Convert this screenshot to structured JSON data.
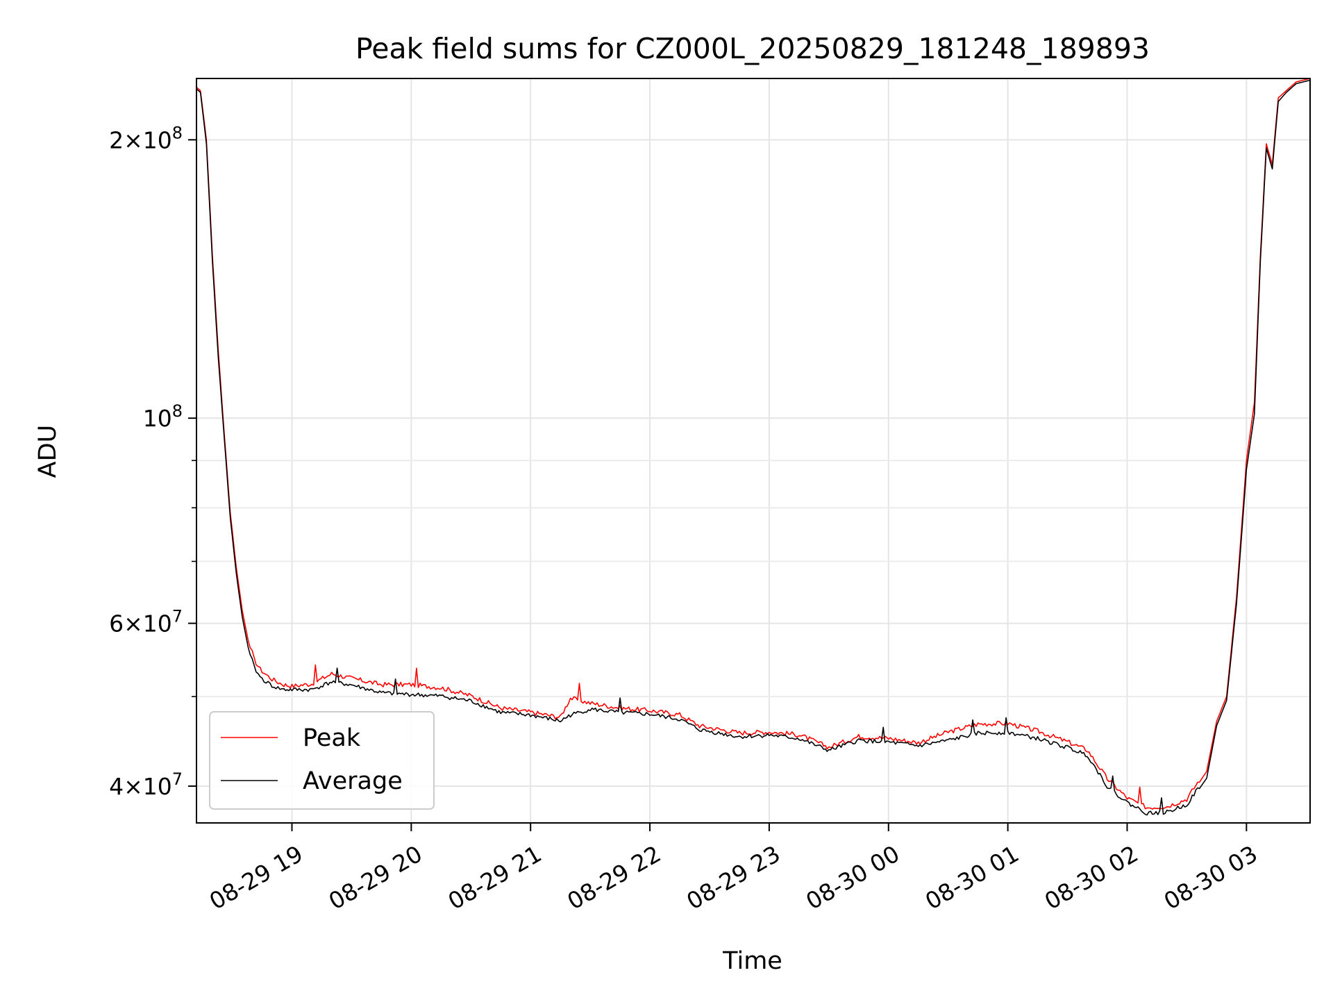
{
  "chart_data": {
    "type": "line",
    "title": "Peak field sums for CZ000L_20250829_181248_189893",
    "xlabel": "Time",
    "ylabel": "ADU",
    "yscale": "log",
    "grid": true,
    "legend_position": "lower-left",
    "xlim": [
      "2025-08-29 18:12",
      "2025-08-30 03:32"
    ],
    "ylim": [
      36500000,
      233000000
    ],
    "x_ticks": [
      {
        "value": "2025-08-29 19:00",
        "label": "08-29 19"
      },
      {
        "value": "2025-08-29 20:00",
        "label": "08-29 20"
      },
      {
        "value": "2025-08-29 21:00",
        "label": "08-29 21"
      },
      {
        "value": "2025-08-29 22:00",
        "label": "08-29 22"
      },
      {
        "value": "2025-08-29 23:00",
        "label": "08-29 23"
      },
      {
        "value": "2025-08-30 00:00",
        "label": "08-30 00"
      },
      {
        "value": "2025-08-30 01:00",
        "label": "08-30 01"
      },
      {
        "value": "2025-08-30 02:00",
        "label": "08-30 02"
      },
      {
        "value": "2025-08-30 03:00",
        "label": "08-30 03"
      }
    ],
    "y_ticks": [
      {
        "value": 40000000,
        "mantissa": "4",
        "exponent": "7"
      },
      {
        "value": 60000000,
        "mantissa": "6",
        "exponent": "7"
      },
      {
        "value": 100000000,
        "mantissa": "",
        "exponent": "8"
      },
      {
        "value": 200000000,
        "mantissa": "2",
        "exponent": "8"
      }
    ],
    "y_minor_ticks": [
      50000000,
      70000000,
      80000000,
      90000000
    ],
    "series": [
      {
        "name": "Peak",
        "color": "#ff0000",
        "x": [
          "2025-08-29 18:12",
          "2025-08-29 18:14",
          "2025-08-29 18:17",
          "2025-08-29 18:20",
          "2025-08-29 18:23",
          "2025-08-29 18:26",
          "2025-08-29 18:29",
          "2025-08-29 18:32",
          "2025-08-29 18:35",
          "2025-08-29 18:38",
          "2025-08-29 18:41",
          "2025-08-29 18:44",
          "2025-08-29 18:47",
          "2025-08-29 18:50",
          "2025-08-29 18:53",
          "2025-08-29 18:56",
          "2025-08-29 19:00",
          "2025-08-29 19:10",
          "2025-08-29 19:20",
          "2025-08-29 19:30",
          "2025-08-29 19:45",
          "2025-08-29 20:00",
          "2025-08-29 20:15",
          "2025-08-29 20:30",
          "2025-08-29 20:45",
          "2025-08-29 21:00",
          "2025-08-29 21:15",
          "2025-08-29 21:20",
          "2025-08-29 21:30",
          "2025-08-29 21:45",
          "2025-08-29 22:00",
          "2025-08-29 22:15",
          "2025-08-29 22:25",
          "2025-08-29 22:45",
          "2025-08-29 23:00",
          "2025-08-29 23:15",
          "2025-08-29 23:30",
          "2025-08-29 23:45",
          "2025-08-30 00:00",
          "2025-08-30 00:15",
          "2025-08-30 00:30",
          "2025-08-30 00:45",
          "2025-08-30 01:00",
          "2025-08-30 01:15",
          "2025-08-30 01:30",
          "2025-08-30 01:40",
          "2025-08-30 01:50",
          "2025-08-30 02:00",
          "2025-08-30 02:10",
          "2025-08-30 02:20",
          "2025-08-30 02:30",
          "2025-08-30 02:40",
          "2025-08-30 02:45",
          "2025-08-30 02:50",
          "2025-08-30 02:55",
          "2025-08-30 03:00",
          "2025-08-30 03:04",
          "2025-08-30 03:07",
          "2025-08-30 03:10",
          "2025-08-30 03:13",
          "2025-08-30 03:16",
          "2025-08-30 03:20",
          "2025-08-30 03:25",
          "2025-08-30 03:32"
        ],
        "y": [
          228000000,
          226000000,
          200000000,
          150000000,
          118000000,
          96000000,
          79000000,
          69000000,
          62000000,
          57500000,
          54500000,
          53200000,
          52500000,
          51900000,
          51500000,
          51200000,
          51000000,
          51300000,
          52600000,
          52000000,
          51200000,
          51200000,
          50800000,
          49800000,
          48300000,
          47800000,
          47200000,
          49500000,
          48900000,
          48300000,
          48000000,
          47500000,
          46200000,
          45400000,
          45500000,
          45200000,
          43800000,
          45000000,
          44800000,
          44300000,
          45500000,
          46400000,
          46500000,
          45600000,
          44400000,
          43500000,
          40500000,
          38600000,
          37700000,
          37800000,
          38500000,
          41500000,
          47000000,
          50000000,
          64000000,
          90000000,
          104000000,
          150000000,
          198000000,
          188000000,
          222000000,
          226000000,
          231000000,
          233000000
        ]
      },
      {
        "name": "Average",
        "color": "#000000",
        "x": [
          "2025-08-29 18:12",
          "2025-08-29 18:14",
          "2025-08-29 18:17",
          "2025-08-29 18:20",
          "2025-08-29 18:23",
          "2025-08-29 18:26",
          "2025-08-29 18:29",
          "2025-08-29 18:32",
          "2025-08-29 18:35",
          "2025-08-29 18:38",
          "2025-08-29 18:41",
          "2025-08-29 18:44",
          "2025-08-29 18:47",
          "2025-08-29 18:50",
          "2025-08-29 18:53",
          "2025-08-29 18:56",
          "2025-08-29 19:00",
          "2025-08-29 19:10",
          "2025-08-29 19:20",
          "2025-08-29 19:30",
          "2025-08-29 19:45",
          "2025-08-29 20:00",
          "2025-08-29 20:15",
          "2025-08-29 20:30",
          "2025-08-29 20:45",
          "2025-08-29 21:00",
          "2025-08-29 21:15",
          "2025-08-29 21:20",
          "2025-08-29 21:30",
          "2025-08-29 21:45",
          "2025-08-29 22:00",
          "2025-08-29 22:15",
          "2025-08-29 22:25",
          "2025-08-29 22:45",
          "2025-08-29 23:00",
          "2025-08-29 23:15",
          "2025-08-29 23:30",
          "2025-08-29 23:45",
          "2025-08-30 00:00",
          "2025-08-30 00:15",
          "2025-08-30 00:30",
          "2025-08-30 00:45",
          "2025-08-30 01:00",
          "2025-08-30 01:15",
          "2025-08-30 01:30",
          "2025-08-30 01:40",
          "2025-08-30 01:50",
          "2025-08-30 02:00",
          "2025-08-30 02:10",
          "2025-08-30 02:20",
          "2025-08-30 02:30",
          "2025-08-30 02:40",
          "2025-08-30 02:45",
          "2025-08-30 02:50",
          "2025-08-30 02:55",
          "2025-08-30 03:00",
          "2025-08-30 03:04",
          "2025-08-30 03:07",
          "2025-08-30 03:10",
          "2025-08-30 03:13",
          "2025-08-30 03:16",
          "2025-08-30 03:20",
          "2025-08-30 03:25",
          "2025-08-30 03:32"
        ],
        "y": [
          227000000,
          225000000,
          198000000,
          148000000,
          116000000,
          95000000,
          78000000,
          68000000,
          61000000,
          56500000,
          53500000,
          52200000,
          51600000,
          51100000,
          50800000,
          50600000,
          50600000,
          50600000,
          51600000,
          51200000,
          50200000,
          50000000,
          49800000,
          49200000,
          47800000,
          47500000,
          46800000,
          47500000,
          48200000,
          47800000,
          47600000,
          47000000,
          45800000,
          45000000,
          45200000,
          44800000,
          43500000,
          44600000,
          44400000,
          44000000,
          44600000,
          45400000,
          45500000,
          44800000,
          43800000,
          43000000,
          39800000,
          38200000,
          37200000,
          37300000,
          38000000,
          40800000,
          46500000,
          49500000,
          63000000,
          88000000,
          101000000,
          148000000,
          196000000,
          186000000,
          220000000,
          225000000,
          230000000,
          232000000
        ]
      }
    ]
  }
}
